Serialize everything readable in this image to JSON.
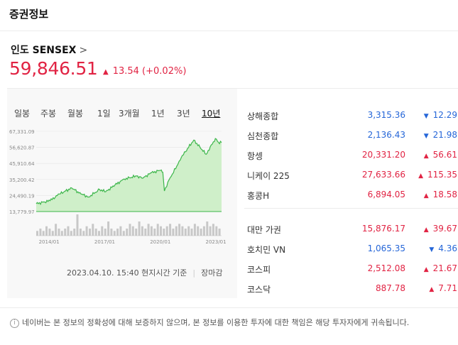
{
  "header": {
    "title": "증권정보"
  },
  "index": {
    "name": "인도 SENSEX",
    "chevron": ">",
    "price": "59,846.51",
    "change_arrow": "▲",
    "change": "13.54 (+0.02%)"
  },
  "tabs": [
    {
      "label": "일봉"
    },
    {
      "label": "주봉"
    },
    {
      "label": "월봉"
    },
    {
      "label": "1일"
    },
    {
      "label": "3개월"
    },
    {
      "label": "1년"
    },
    {
      "label": "3년"
    },
    {
      "label": "10년"
    }
  ],
  "active_tab": "10년",
  "chart_data": {
    "type": "area",
    "y_ticks": [
      "67,331.09",
      "56,620.87",
      "45,910.64",
      "35,200.42",
      "24,490.19",
      "13,779.97"
    ],
    "x_ticks": [
      "2014/01",
      "2017/01",
      "2020/01",
      "2023/01"
    ],
    "ylim": [
      13779.97,
      67331.09
    ],
    "series": [
      {
        "x": [
          "2013/04",
          "2014/01",
          "2014/07",
          "2015/03",
          "2015/09",
          "2016/02",
          "2016/09",
          "2017/01",
          "2017/07",
          "2018/01",
          "2018/09",
          "2019/01",
          "2019/06",
          "2020/01",
          "2020/02",
          "2020/03",
          "2020/06",
          "2020/11",
          "2021/02",
          "2021/10",
          "2022/06",
          "2022/12",
          "2023/02",
          "2023/04"
        ],
        "values": [
          19000,
          21000,
          25500,
          29500,
          25500,
          23500,
          28500,
          27000,
          31500,
          35500,
          37500,
          36000,
          39500,
          41500,
          40000,
          27500,
          35000,
          44000,
          50000,
          61500,
          52000,
          62500,
          60000,
          59846
        ]
      }
    ],
    "volume": [
      2,
      3,
      2,
      4,
      3,
      2,
      5,
      3,
      2,
      3,
      4,
      2,
      3,
      9,
      3,
      2,
      4,
      3,
      5,
      3,
      2,
      4,
      3,
      6,
      3,
      2,
      3,
      4,
      2,
      3,
      5,
      4,
      3,
      6,
      4,
      3,
      5,
      4,
      3,
      5,
      4,
      3,
      4,
      5,
      3,
      4,
      5,
      4,
      3,
      4,
      3,
      5,
      4,
      3,
      4,
      6,
      4,
      5,
      4,
      3
    ]
  },
  "timestamp": "2023.04.10. 15:40 현지시간 기준",
  "market_status": "장마감",
  "markets_group1": [
    {
      "name": "상해종합",
      "value": "3,315.36",
      "dir": "down",
      "arrow": "▼",
      "change": "12.29"
    },
    {
      "name": "심천종합",
      "value": "2,136.43",
      "dir": "down",
      "arrow": "▼",
      "change": "21.98"
    },
    {
      "name": "항셍",
      "value": "20,331.20",
      "dir": "up",
      "arrow": "▲",
      "change": "56.61"
    },
    {
      "name": "니케이 225",
      "value": "27,633.66",
      "dir": "up",
      "arrow": "▲",
      "change": "115.35"
    },
    {
      "name": "홍콩H",
      "value": "6,894.05",
      "dir": "up",
      "arrow": "▲",
      "change": "18.58"
    }
  ],
  "markets_group2": [
    {
      "name": "대만 가권",
      "value": "15,876.17",
      "dir": "up",
      "arrow": "▲",
      "change": "39.67"
    },
    {
      "name": "호치민 VN",
      "value": "1,065.35",
      "dir": "down",
      "arrow": "▼",
      "change": "4.36"
    },
    {
      "name": "코스피",
      "value": "2,512.08",
      "dir": "up",
      "arrow": "▲",
      "change": "21.67"
    },
    {
      "name": "코스닥",
      "value": "887.78",
      "dir": "up",
      "arrow": "▲",
      "change": "7.71"
    }
  ],
  "notice": "네이버는 본 정보의 정확성에 대해 보증하지 않으며, 본 정보를 이용한 투자에 대한 책임은 해당 투자자에게 귀속됩니다.",
  "colors": {
    "up": "#e12343",
    "down": "#2566d8",
    "chart_line": "#3cb64a",
    "chart_fill": "#cfefc9"
  }
}
